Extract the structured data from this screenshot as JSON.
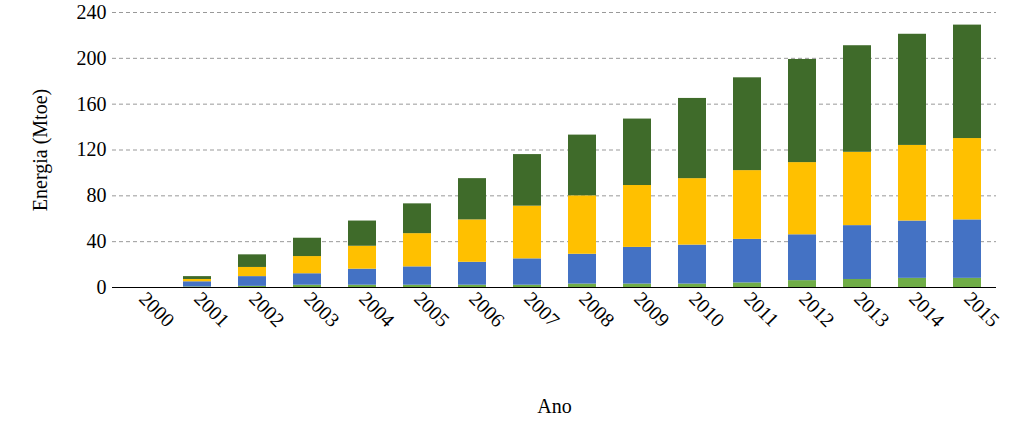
{
  "chart_data": {
    "type": "bar",
    "stacked": true,
    "x_label": "Ano",
    "y_label": "Energia (Mtoe)",
    "categories": [
      "2000",
      "2001",
      "2002",
      "2003",
      "2004",
      "2005",
      "2006",
      "2007",
      "2008",
      "2009",
      "2010",
      "2011",
      "2012",
      "2013",
      "2014",
      "2015"
    ],
    "series": [
      {
        "color": "#70ad47",
        "values": [
          0,
          0.5,
          1,
          2,
          2,
          2,
          2,
          2,
          3,
          3,
          3,
          4,
          6,
          7,
          8,
          8
        ]
      },
      {
        "color": "#4472c4",
        "values": [
          0,
          4.5,
          8.5,
          10,
          14,
          16,
          20,
          23,
          26,
          32,
          34,
          38,
          40,
          47,
          50,
          51
        ]
      },
      {
        "color": "#ffc000",
        "values": [
          0,
          2,
          8,
          15,
          20,
          29,
          37,
          46,
          51,
          54,
          58,
          60,
          63,
          64,
          66,
          71
        ]
      },
      {
        "color": "#3f6b2a",
        "values": [
          0,
          2.5,
          11,
          16,
          22,
          26,
          36,
          45,
          53,
          58,
          70,
          81,
          90,
          93,
          97,
          99
        ]
      }
    ],
    "ylim": [
      0,
      240
    ],
    "yticks": [
      0,
      40,
      80,
      120,
      160,
      200,
      240
    ],
    "grid": true
  }
}
